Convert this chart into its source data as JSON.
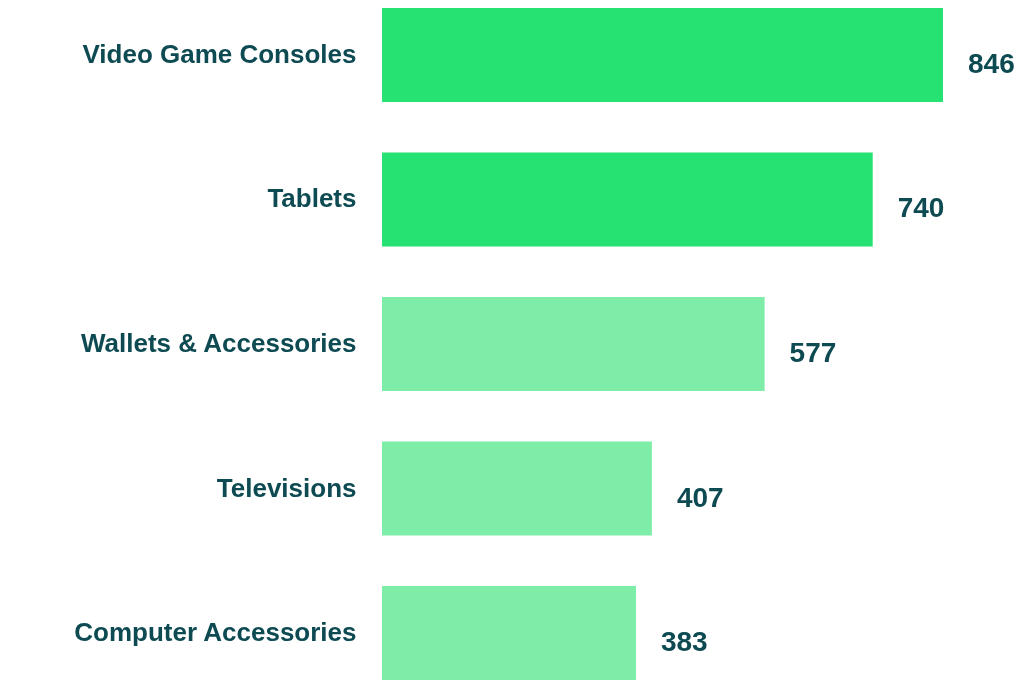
{
  "chart_data": {
    "type": "bar",
    "orientation": "horizontal",
    "categories": [
      "Video Game Consoles",
      "Tablets",
      "Wallets & Accessories",
      "Televisions",
      "Computer Accessories"
    ],
    "values": [
      846,
      740,
      577,
      407,
      383
    ],
    "colors": [
      "#26e272",
      "#26e272",
      "#7eeda8",
      "#7eeda8",
      "#7eeda8"
    ],
    "data_labels": true
  }
}
